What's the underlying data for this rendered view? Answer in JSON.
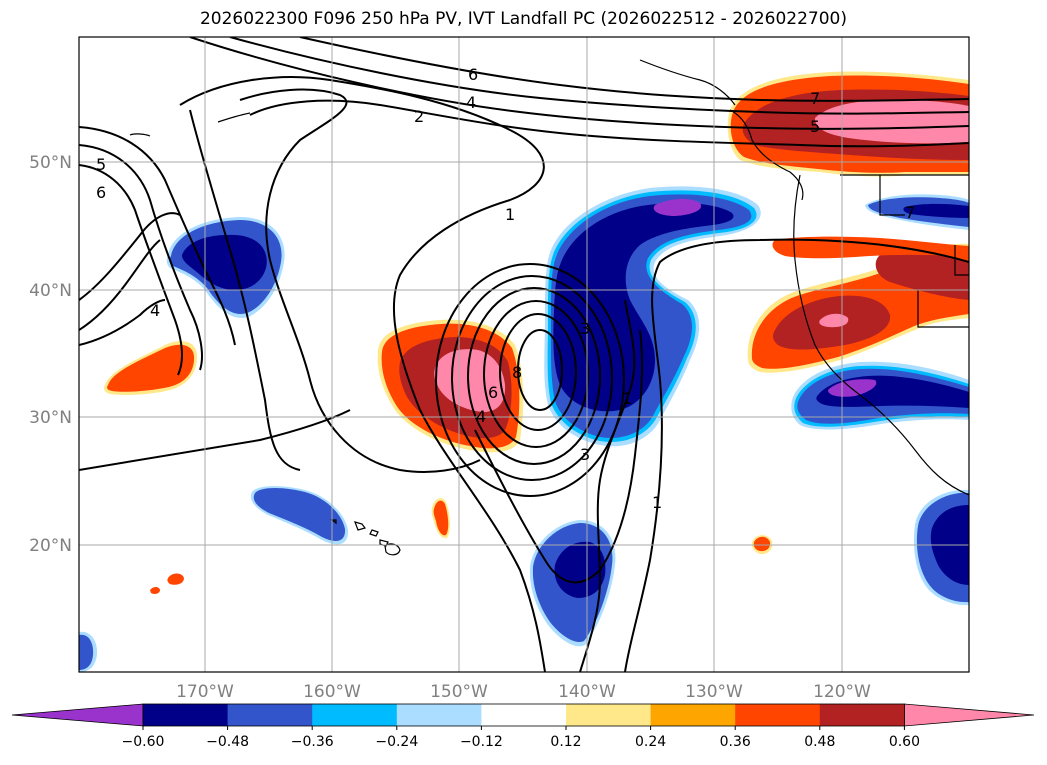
{
  "title": "2026022300 F096 250 hPa PV, IVT Landfall PC (2026022512 - 2026022700)",
  "axes": {
    "lat_labels": [
      "50°N",
      "40°N",
      "30°N",
      "20°N"
    ],
    "lon_labels": [
      "170°W",
      "160°W",
      "150°W",
      "140°W",
      "130°W",
      "120°W"
    ]
  },
  "contour_labels": [
    "6",
    "4",
    "2",
    "5",
    "6",
    "1",
    "4",
    "8",
    "6",
    "4",
    "3",
    "1",
    "3",
    "7",
    "5",
    "7",
    "1"
  ],
  "colorbar": {
    "ticks": [
      "−0.60",
      "−0.48",
      "−0.36",
      "−0.24",
      "−0.12",
      "0.12",
      "0.24",
      "0.36",
      "0.48",
      "0.60"
    ],
    "colors": [
      "#9933cc",
      "#000088",
      "#3355cc",
      "#00bbff",
      "#aaddff",
      "#ffffff",
      "#ffe88a",
      "#ffa500",
      "#ff4500",
      "#b22222",
      "#ff88aa"
    ]
  },
  "colors": {
    "pink": "#ff88aa",
    "darkred": "#b22222",
    "orangered": "#ff4500",
    "orange": "#ffa500",
    "yellow": "#ffe88a",
    "purple": "#9933cc",
    "navy": "#000088",
    "blue": "#3355cc",
    "cyan": "#00bbff",
    "lightblue": "#aaddff"
  }
}
